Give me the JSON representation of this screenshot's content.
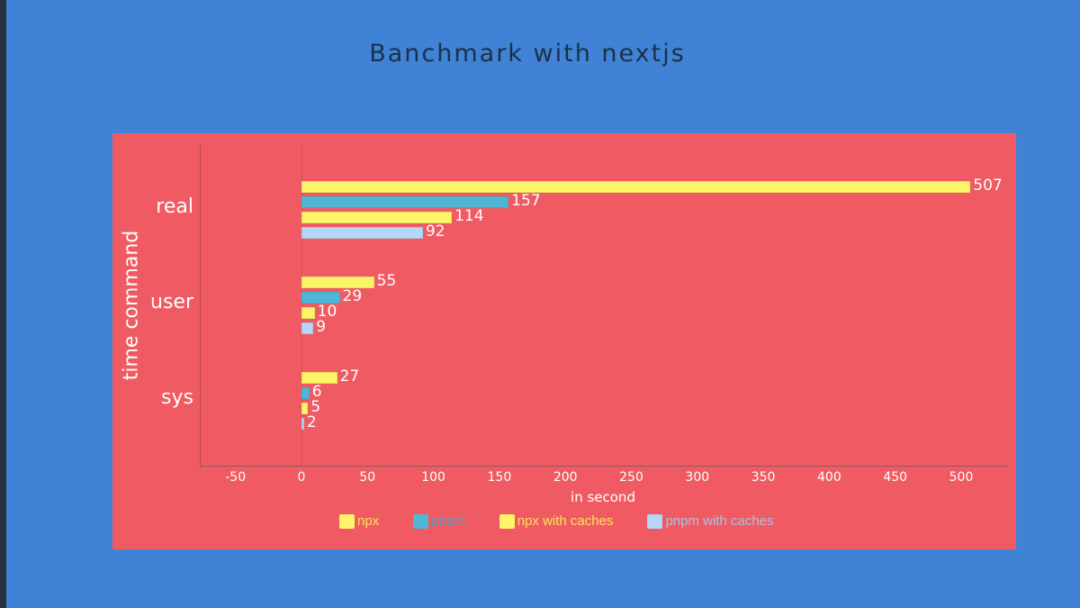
{
  "title": "Banchmark with nextjs",
  "colors": {
    "background": "#4083d6",
    "panel": "#f05b63",
    "npx": "#fbf567",
    "pnpm": "#4fb6d6",
    "npx_with_caches": "#fbf567",
    "pnpm_with_caches": "#b3d7f7"
  },
  "chart_data": {
    "type": "bar",
    "orientation": "horizontal",
    "title": "Banchmark with nextjs",
    "xlabel": "in second",
    "ylabel": "time command",
    "categories": [
      "real",
      "user",
      "sys"
    ],
    "series": [
      {
        "name": "npx",
        "color": "#fbf567",
        "values": [
          507,
          55,
          27
        ]
      },
      {
        "name": "pnpm",
        "color": "#4fb6d6",
        "values": [
          157,
          29,
          6
        ]
      },
      {
        "name": "npx with caches",
        "color": "#fbf567",
        "values": [
          114,
          10,
          5
        ]
      },
      {
        "name": "pnpm with caches",
        "color": "#b3d7f7",
        "values": [
          92,
          9,
          2
        ]
      }
    ],
    "xlim": [
      -77,
      538
    ],
    "xticks": [
      -50,
      0,
      50,
      100,
      150,
      200,
      250,
      300,
      350,
      400,
      450,
      500
    ],
    "grid": false,
    "legend_position": "bottom"
  },
  "legend": [
    {
      "label": "npx",
      "swatch": "#fbf567",
      "text_color": "#fbe25a"
    },
    {
      "label": "pnpm",
      "swatch": "#4fb6d6",
      "text_color": "#5a9cc5"
    },
    {
      "label": "npx with caches",
      "swatch": "#fbf567",
      "text_color": "#fbe25a"
    },
    {
      "label": "pnpm with caches",
      "swatch": "#b3d7f7",
      "text_color": "#a9c3e0"
    }
  ]
}
